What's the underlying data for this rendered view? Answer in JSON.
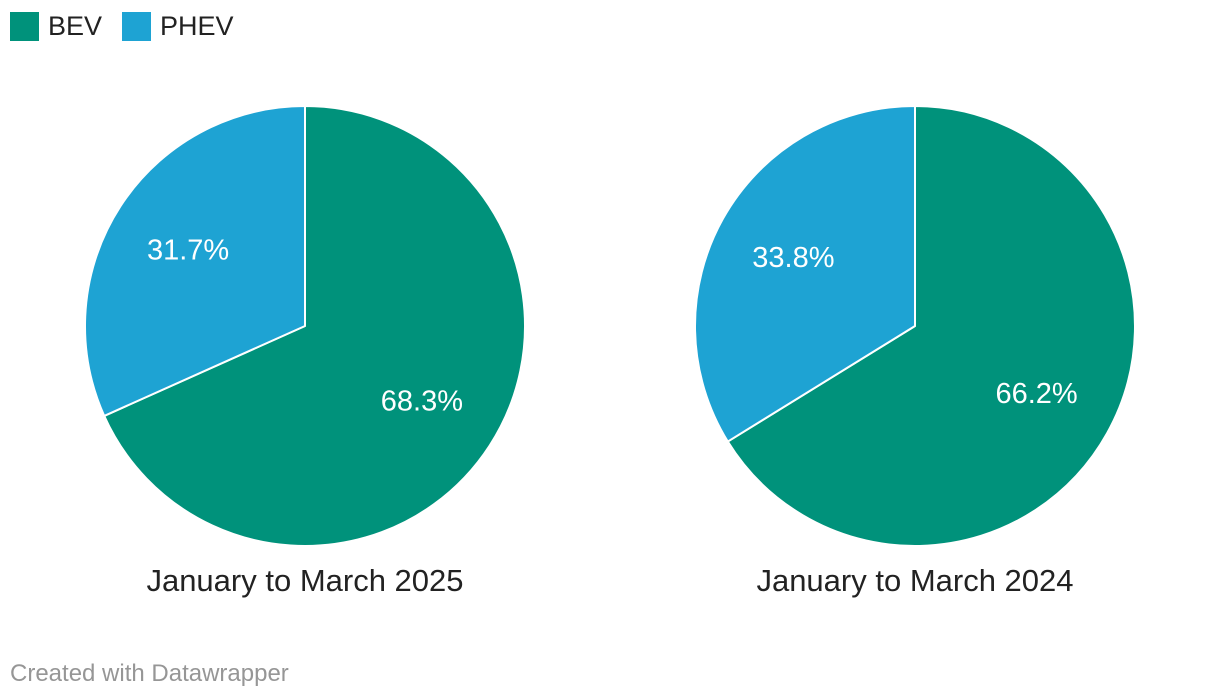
{
  "legend": {
    "position": "top-left",
    "items": [
      {
        "label": "BEV",
        "color": "#00927b"
      },
      {
        "label": "PHEV",
        "color": "#1ea3d3"
      }
    ]
  },
  "footer": {
    "credit": "Created with Datawrapper"
  },
  "chart_data": [
    {
      "type": "pie",
      "title": "January to March 2025",
      "start_angle_deg": 0,
      "direction": "clockwise",
      "slice_separator_color": "#ffffff",
      "label_color": "#ffffff",
      "slices": [
        {
          "label": "BEV",
          "value": 68.3,
          "display": "68.3%",
          "color": "#00927b"
        },
        {
          "label": "PHEV",
          "value": 31.7,
          "display": "31.7%",
          "color": "#1ea3d3"
        }
      ]
    },
    {
      "type": "pie",
      "title": "January to March 2024",
      "start_angle_deg": 0,
      "direction": "clockwise",
      "slice_separator_color": "#ffffff",
      "label_color": "#ffffff",
      "slices": [
        {
          "label": "BEV",
          "value": 66.2,
          "display": "66.2%",
          "color": "#00927b"
        },
        {
          "label": "PHEV",
          "value": 33.8,
          "display": "33.8%",
          "color": "#1ea3d3"
        }
      ]
    }
  ]
}
